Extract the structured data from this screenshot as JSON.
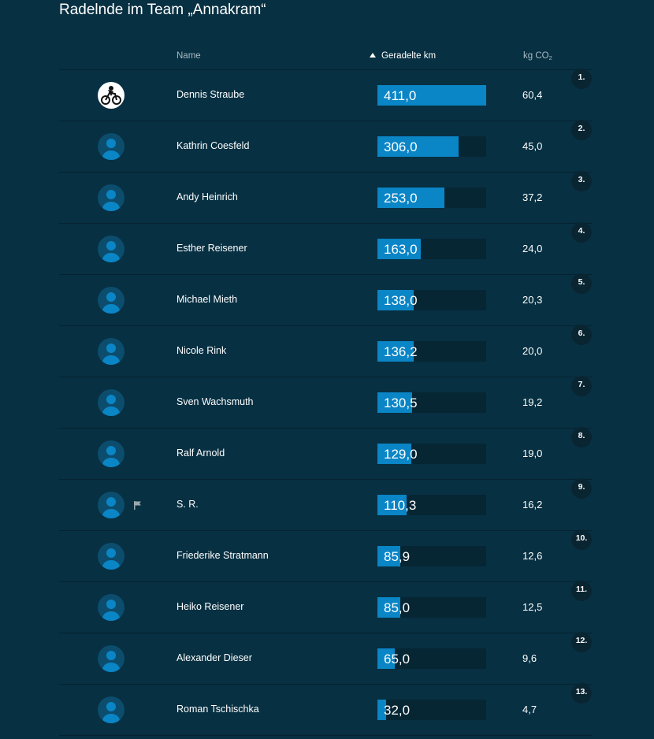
{
  "page": {
    "title": "Radelnde im Team „Annakram“"
  },
  "table": {
    "header": {
      "name": "Name",
      "km": "Geradelte km",
      "co2_prefix": "kg CO",
      "co2_sub": "2"
    },
    "max_km": 411.0,
    "rows": [
      {
        "rank": "1.",
        "name": "Dennis Straube",
        "km": "411,0",
        "km_value": 411.0,
        "co2": "60,4",
        "avatar": "cyclist-photo",
        "flag": false
      },
      {
        "rank": "2.",
        "name": "Kathrin Coesfeld",
        "km": "306,0",
        "km_value": 306.0,
        "co2": "45,0",
        "avatar": "default-user-icon",
        "flag": false
      },
      {
        "rank": "3.",
        "name": "Andy Heinrich",
        "km": "253,0",
        "km_value": 253.0,
        "co2": "37,2",
        "avatar": "default-user-icon",
        "flag": false
      },
      {
        "rank": "4.",
        "name": "Esther Reisener",
        "km": "163,0",
        "km_value": 163.0,
        "co2": "24,0",
        "avatar": "default-user-icon",
        "flag": false
      },
      {
        "rank": "5.",
        "name": "Michael Mieth",
        "km": "138,0",
        "km_value": 138.0,
        "co2": "20,3",
        "avatar": "default-user-icon",
        "flag": false
      },
      {
        "rank": "6.",
        "name": "Nicole Rink",
        "km": "136,2",
        "km_value": 136.2,
        "co2": "20,0",
        "avatar": "default-user-icon",
        "flag": false
      },
      {
        "rank": "7.",
        "name": "Sven Wachsmuth",
        "km": "130,5",
        "km_value": 130.5,
        "co2": "19,2",
        "avatar": "default-user-icon",
        "flag": false
      },
      {
        "rank": "8.",
        "name": "Ralf Arnold",
        "km": "129,0",
        "km_value": 129.0,
        "co2": "19,0",
        "avatar": "default-user-icon",
        "flag": false
      },
      {
        "rank": "9.",
        "name": "S. R.",
        "km": "110,3",
        "km_value": 110.3,
        "co2": "16,2",
        "avatar": "default-user-icon",
        "flag": true
      },
      {
        "rank": "10.",
        "name": "Friederike Stratmann",
        "km": "85,9",
        "km_value": 85.9,
        "co2": "12,6",
        "avatar": "default-user-icon",
        "flag": false
      },
      {
        "rank": "11.",
        "name": "Heiko Reisener",
        "km": "85,0",
        "km_value": 85.0,
        "co2": "12,5",
        "avatar": "default-user-icon",
        "flag": false
      },
      {
        "rank": "12.",
        "name": "Alexander Dieser",
        "km": "65,0",
        "km_value": 65.0,
        "co2": "9,6",
        "avatar": "default-user-icon",
        "flag": false
      },
      {
        "rank": "13.",
        "name": "Roman Tschischka",
        "km": "32,0",
        "km_value": 32.0,
        "co2": "4,7",
        "avatar": "default-user-icon",
        "flag": false
      }
    ]
  },
  "colors": {
    "background": "#073042",
    "bar_fill": "#0a85c6",
    "bar_track": "#062634",
    "avatar_bg": "#0c4d6d",
    "avatar_figure": "#0a85c6",
    "rank_badge": "#0a2532"
  }
}
